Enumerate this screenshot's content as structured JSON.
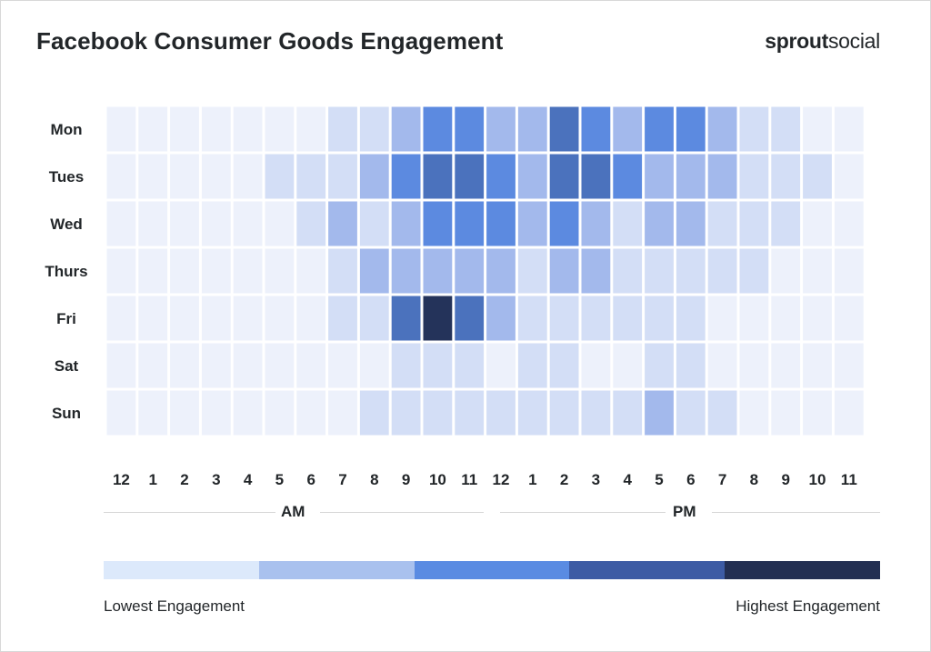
{
  "title": "Facebook Consumer Goods Engagement",
  "brand": {
    "part1": "sprout",
    "part2": "social"
  },
  "chart_data": {
    "type": "heatmap",
    "title": "Facebook Consumer Goods Engagement",
    "rows": [
      "Mon",
      "Tues",
      "Wed",
      "Thurs",
      "Fri",
      "Sat",
      "Sun"
    ],
    "columns": [
      "12",
      "1",
      "2",
      "3",
      "4",
      "5",
      "6",
      "7",
      "8",
      "9",
      "10",
      "11",
      "12",
      "1",
      "2",
      "3",
      "4",
      "5",
      "6",
      "7",
      "8",
      "9",
      "10",
      "11"
    ],
    "periods": [
      "AM",
      "PM"
    ],
    "scale": "0 = lowest engagement, 6 = highest engagement",
    "values": [
      [
        0,
        0,
        0,
        0,
        0,
        0,
        0,
        1,
        1,
        2,
        3,
        3,
        2,
        2,
        4,
        3,
        2,
        3,
        3,
        2,
        1,
        1,
        0,
        0
      ],
      [
        0,
        0,
        0,
        0,
        0,
        1,
        1,
        1,
        2,
        3,
        4,
        4,
        3,
        2,
        4,
        4,
        3,
        2,
        2,
        2,
        1,
        1,
        1,
        0
      ],
      [
        0,
        0,
        0,
        0,
        0,
        0,
        1,
        2,
        1,
        2,
        3,
        3,
        3,
        2,
        3,
        2,
        1,
        2,
        2,
        1,
        1,
        1,
        0,
        0
      ],
      [
        0,
        0,
        0,
        0,
        0,
        0,
        0,
        1,
        2,
        2,
        2,
        2,
        2,
        1,
        2,
        2,
        1,
        1,
        1,
        1,
        1,
        0,
        0,
        0
      ],
      [
        0,
        0,
        0,
        0,
        0,
        0,
        0,
        1,
        1,
        4,
        6,
        4,
        2,
        1,
        1,
        1,
        1,
        1,
        1,
        0,
        0,
        0,
        0,
        0
      ],
      [
        0,
        0,
        0,
        0,
        0,
        0,
        0,
        0,
        0,
        1,
        1,
        1,
        0,
        1,
        1,
        0,
        0,
        1,
        1,
        0,
        0,
        0,
        0,
        0
      ],
      [
        0,
        0,
        0,
        0,
        0,
        0,
        0,
        0,
        1,
        1,
        1,
        1,
        1,
        1,
        1,
        1,
        1,
        2,
        1,
        1,
        0,
        0,
        0,
        0
      ]
    ],
    "cell_colors": [
      "#edf1fb",
      "#d3def6",
      "#a3b9ec",
      "#5c8ae0",
      "#4b72bd",
      "#3a5a9e",
      "#24335a"
    ]
  },
  "legend": {
    "low_label": "Lowest Engagement",
    "high_label": "Highest Engagement",
    "colors": [
      "#dce9fb",
      "#a9c1ee",
      "#5a8be2",
      "#3d5ba4",
      "#232f52"
    ]
  }
}
